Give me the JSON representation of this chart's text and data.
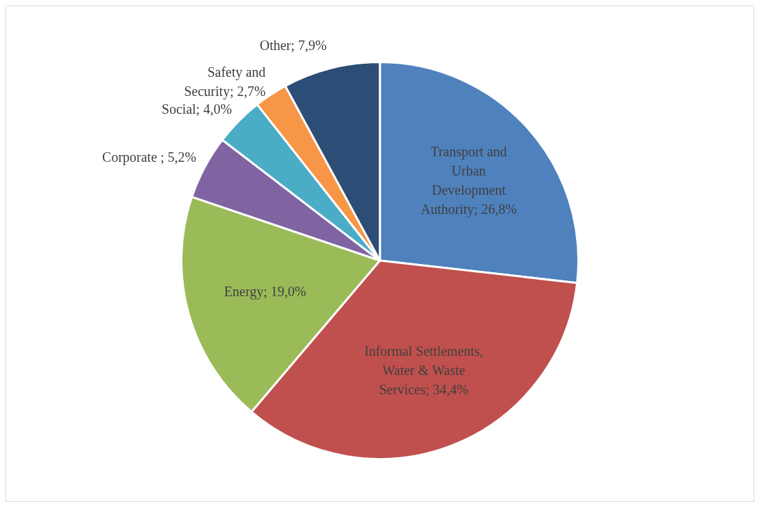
{
  "chart_data": {
    "type": "pie",
    "categories": [
      "Transport and Urban Development Authority",
      "Informal Settlements, Water & Waste Services",
      "Energy",
      "Corporate ",
      "Social",
      "Safety and Security",
      "Other"
    ],
    "values": [
      26.8,
      34.4,
      19.0,
      5.2,
      4.0,
      2.7,
      7.9
    ],
    "value_labels": [
      "26,8%",
      "34,4%",
      "19,0%",
      "5,2%",
      "4,0%",
      "2,7%",
      "7,9%"
    ],
    "colors": [
      "#4f81bd",
      "#c0504d",
      "#9bbb59",
      "#8064a2",
      "#4bacc6",
      "#f79646",
      "#2c4d75"
    ],
    "legend": false
  }
}
